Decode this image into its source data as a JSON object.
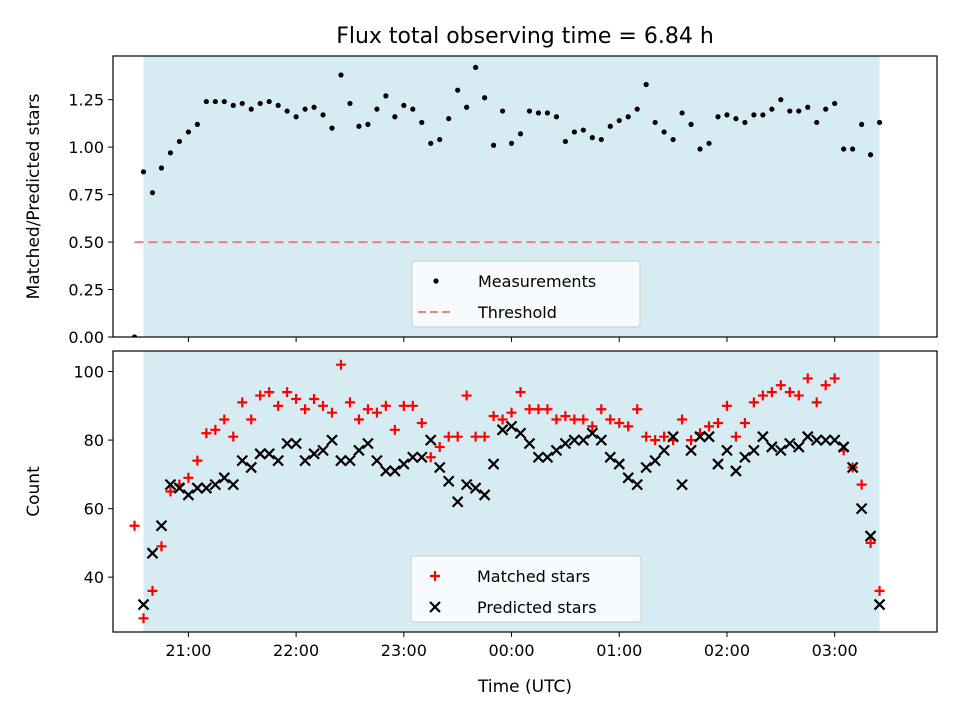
{
  "title": "Flux total observing time = 6.84 h",
  "xlabel": "Time (UTC)",
  "x_ticks": [
    "21:00",
    "22:00",
    "23:00",
    "00:00",
    "01:00",
    "02:00",
    "03:00"
  ],
  "colors": {
    "band": "#add8e6",
    "threshold": "#f08080",
    "matched": "#ff0000",
    "predicted": "#000000",
    "measurements": "#000000"
  },
  "chart_data": [
    {
      "type": "scatter",
      "ylabel": "Matched/Predicted stars",
      "xlim": [
        "20:18",
        "03:57"
      ],
      "ylim": [
        0,
        1.48
      ],
      "y_ticks": [
        "0.00",
        "0.25",
        "0.50",
        "0.75",
        "1.00",
        "1.25"
      ],
      "shaded_interval": [
        "20:35",
        "03:25"
      ],
      "threshold": 0.5,
      "legend": [
        "Measurements",
        "Threshold"
      ],
      "legend_position": "lower center",
      "x": [
        "20:30",
        "20:35",
        "20:40",
        "20:45",
        "20:50",
        "20:55",
        "21:00",
        "21:05",
        "21:10",
        "21:15",
        "21:20",
        "21:25",
        "21:30",
        "21:35",
        "21:40",
        "21:45",
        "21:50",
        "21:55",
        "22:00",
        "22:05",
        "22:10",
        "22:15",
        "22:20",
        "22:25",
        "22:30",
        "22:35",
        "22:40",
        "22:45",
        "22:50",
        "22:55",
        "23:00",
        "23:05",
        "23:10",
        "23:15",
        "23:20",
        "23:25",
        "23:30",
        "23:35",
        "23:40",
        "23:45",
        "23:50",
        "23:55",
        "00:00",
        "00:05",
        "00:10",
        "00:15",
        "00:20",
        "00:25",
        "00:30",
        "00:35",
        "00:40",
        "00:45",
        "00:50",
        "00:55",
        "01:00",
        "01:05",
        "01:10",
        "01:15",
        "01:20",
        "01:25",
        "01:30",
        "01:35",
        "01:40",
        "01:45",
        "01:50",
        "01:55",
        "02:00",
        "02:05",
        "02:10",
        "02:15",
        "02:20",
        "02:25",
        "02:30",
        "02:35",
        "02:40",
        "02:45",
        "02:50",
        "02:55",
        "03:00",
        "03:05",
        "03:10",
        "03:15",
        "03:20",
        "03:25"
      ],
      "series": [
        {
          "name": "Measurements",
          "values": [
            0.0,
            0.87,
            0.76,
            0.89,
            0.97,
            1.03,
            1.08,
            1.12,
            1.24,
            1.24,
            1.24,
            1.22,
            1.23,
            1.2,
            1.23,
            1.24,
            1.22,
            1.19,
            1.16,
            1.2,
            1.21,
            1.17,
            1.1,
            1.38,
            1.23,
            1.11,
            1.12,
            1.2,
            1.27,
            1.16,
            1.22,
            1.2,
            1.13,
            1.02,
            1.04,
            1.15,
            1.3,
            1.21,
            1.42,
            1.26,
            1.01,
            1.19,
            1.02,
            1.07,
            1.19,
            1.18,
            1.18,
            1.16,
            1.03,
            1.08,
            1.09,
            1.05,
            1.04,
            1.11,
            1.14,
            1.16,
            1.2,
            1.33,
            1.13,
            1.08,
            1.04,
            1.18,
            1.12,
            0.99,
            1.02,
            1.16,
            1.17,
            1.15,
            1.13,
            1.17,
            1.17,
            1.2,
            1.25,
            1.19,
            1.19,
            1.21,
            1.13,
            1.2,
            1.23,
            0.99,
            0.99,
            1.12,
            0.96,
            1.13
          ]
        }
      ]
    },
    {
      "type": "scatter",
      "ylabel": "Count",
      "xlim": [
        "20:18",
        "03:57"
      ],
      "ylim": [
        24,
        106
      ],
      "y_ticks": [
        "40",
        "60",
        "80",
        "100"
      ],
      "shaded_interval": [
        "20:35",
        "03:25"
      ],
      "legend": [
        "Matched stars",
        "Predicted stars"
      ],
      "legend_position": "lower center",
      "x": [
        "20:30",
        "20:35",
        "20:40",
        "20:45",
        "20:50",
        "20:55",
        "21:00",
        "21:05",
        "21:10",
        "21:15",
        "21:20",
        "21:25",
        "21:30",
        "21:35",
        "21:40",
        "21:45",
        "21:50",
        "21:55",
        "22:00",
        "22:05",
        "22:10",
        "22:15",
        "22:20",
        "22:25",
        "22:30",
        "22:35",
        "22:40",
        "22:45",
        "22:50",
        "22:55",
        "23:00",
        "23:05",
        "23:10",
        "23:15",
        "23:20",
        "23:25",
        "23:30",
        "23:35",
        "23:40",
        "23:45",
        "23:50",
        "23:55",
        "00:00",
        "00:05",
        "00:10",
        "00:15",
        "00:20",
        "00:25",
        "00:30",
        "00:35",
        "00:40",
        "00:45",
        "00:50",
        "00:55",
        "01:00",
        "01:05",
        "01:10",
        "01:15",
        "01:20",
        "01:25",
        "01:30",
        "01:35",
        "01:40",
        "01:45",
        "01:50",
        "01:55",
        "02:00",
        "02:05",
        "02:10",
        "02:15",
        "02:20",
        "02:25",
        "02:30",
        "02:35",
        "02:40",
        "02:45",
        "02:50",
        "02:55",
        "03:00",
        "03:05",
        "03:10",
        "03:15",
        "03:20",
        "03:25"
      ],
      "series": [
        {
          "name": "Matched stars",
          "values": [
            55,
            28,
            36,
            49,
            65,
            67,
            69,
            74,
            82,
            83,
            86,
            81,
            91,
            86,
            93,
            94,
            90,
            94,
            92,
            89,
            92,
            90,
            88,
            102,
            91,
            86,
            89,
            88,
            90,
            83,
            90,
            90,
            85,
            75,
            78,
            81,
            81,
            93,
            81,
            81,
            87,
            86,
            88,
            94,
            89,
            89,
            89,
            86,
            87,
            86,
            86,
            84,
            89,
            86,
            85,
            84,
            89,
            81,
            80,
            81,
            80,
            86,
            80,
            82,
            84,
            85,
            90,
            81,
            85,
            91,
            93,
            94,
            96,
            94,
            93,
            98,
            91,
            96,
            98,
            77,
            72,
            67,
            50,
            36
          ]
        },
        {
          "name": "Predicted stars",
          "values": [
            null,
            32,
            47,
            55,
            67,
            66,
            64,
            66,
            66,
            67,
            69,
            67,
            74,
            72,
            76,
            76,
            74,
            79,
            79,
            74,
            76,
            77,
            80,
            74,
            74,
            77,
            79,
            74,
            71,
            71,
            73,
            75,
            75,
            80,
            72,
            68,
            62,
            67,
            66,
            64,
            73,
            83,
            84,
            82,
            79,
            75,
            75,
            77,
            79,
            80,
            80,
            82,
            80,
            75,
            73,
            69,
            67,
            72,
            74,
            77,
            81,
            67,
            77,
            81,
            81,
            73,
            77,
            71,
            75,
            77,
            81,
            78,
            77,
            79,
            78,
            81,
            80,
            80,
            80,
            78,
            72,
            60,
            52,
            32
          ]
        }
      ]
    }
  ]
}
